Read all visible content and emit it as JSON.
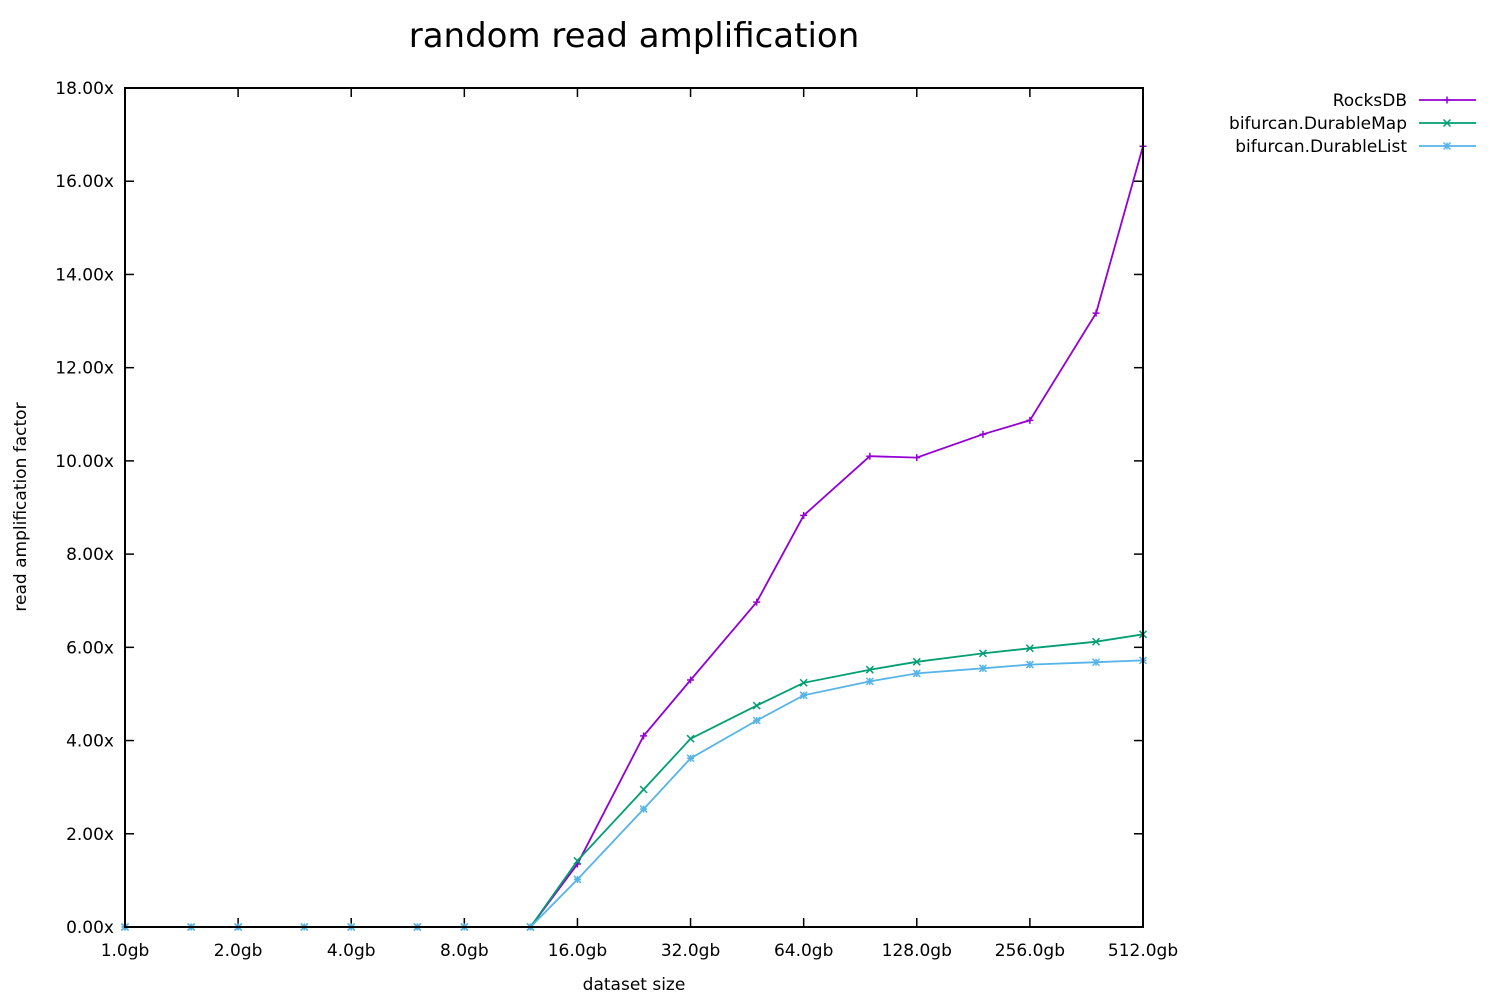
{
  "chart_data": {
    "type": "line",
    "title": "random read amplification",
    "xlabel": "dataset size",
    "ylabel": "read amplification factor",
    "x_scale": "log2",
    "x": [
      "1.0gb",
      "1.5gb",
      "2.0gb",
      "3.0gb",
      "4.0gb",
      "6.0gb",
      "8.0gb",
      "12.0gb",
      "16.0gb",
      "24.0gb",
      "32.0gb",
      "48.0gb",
      "64.0gb",
      "96.0gb",
      "128.0gb",
      "192.0gb",
      "256.0gb",
      "384.0gb",
      "512.0gb"
    ],
    "xlim": [
      "1.0gb",
      "512.0gb"
    ],
    "x_ticks": [
      "1.0gb",
      "2.0gb",
      "4.0gb",
      "8.0gb",
      "16.0gb",
      "32.0gb",
      "64.0gb",
      "128.0gb",
      "256.0gb",
      "512.0gb"
    ],
    "ylim": [
      0,
      18
    ],
    "y_ticks": [
      "0.00x",
      "2.00x",
      "4.00x",
      "6.00x",
      "8.00x",
      "10.00x",
      "12.00x",
      "14.00x",
      "16.00x",
      "18.00x"
    ],
    "grid": false,
    "legend_position": "top-right, outside plot",
    "series": [
      {
        "name": "RocksDB",
        "color": "#9400d3",
        "marker": "plus",
        "values": [
          0,
          0,
          0,
          0,
          0,
          0,
          0,
          0,
          1.35,
          4.1,
          5.3,
          6.97,
          8.83,
          10.1,
          10.07,
          10.57,
          10.87,
          13.17,
          16.75
        ]
      },
      {
        "name": "bifurcan.DurableMap",
        "color": "#009e73",
        "marker": "cross",
        "values": [
          0,
          0,
          0,
          0,
          0,
          0,
          0,
          0,
          1.42,
          2.95,
          4.04,
          4.75,
          5.24,
          5.52,
          5.69,
          5.87,
          5.98,
          6.12,
          6.28
        ]
      },
      {
        "name": "bifurcan.DurableList",
        "color": "#56b4e9",
        "marker": "star",
        "values": [
          0,
          0,
          0,
          0,
          0,
          0,
          0,
          0,
          1.02,
          2.53,
          3.62,
          4.43,
          4.97,
          5.27,
          5.44,
          5.55,
          5.63,
          5.68,
          5.72
        ]
      }
    ]
  }
}
